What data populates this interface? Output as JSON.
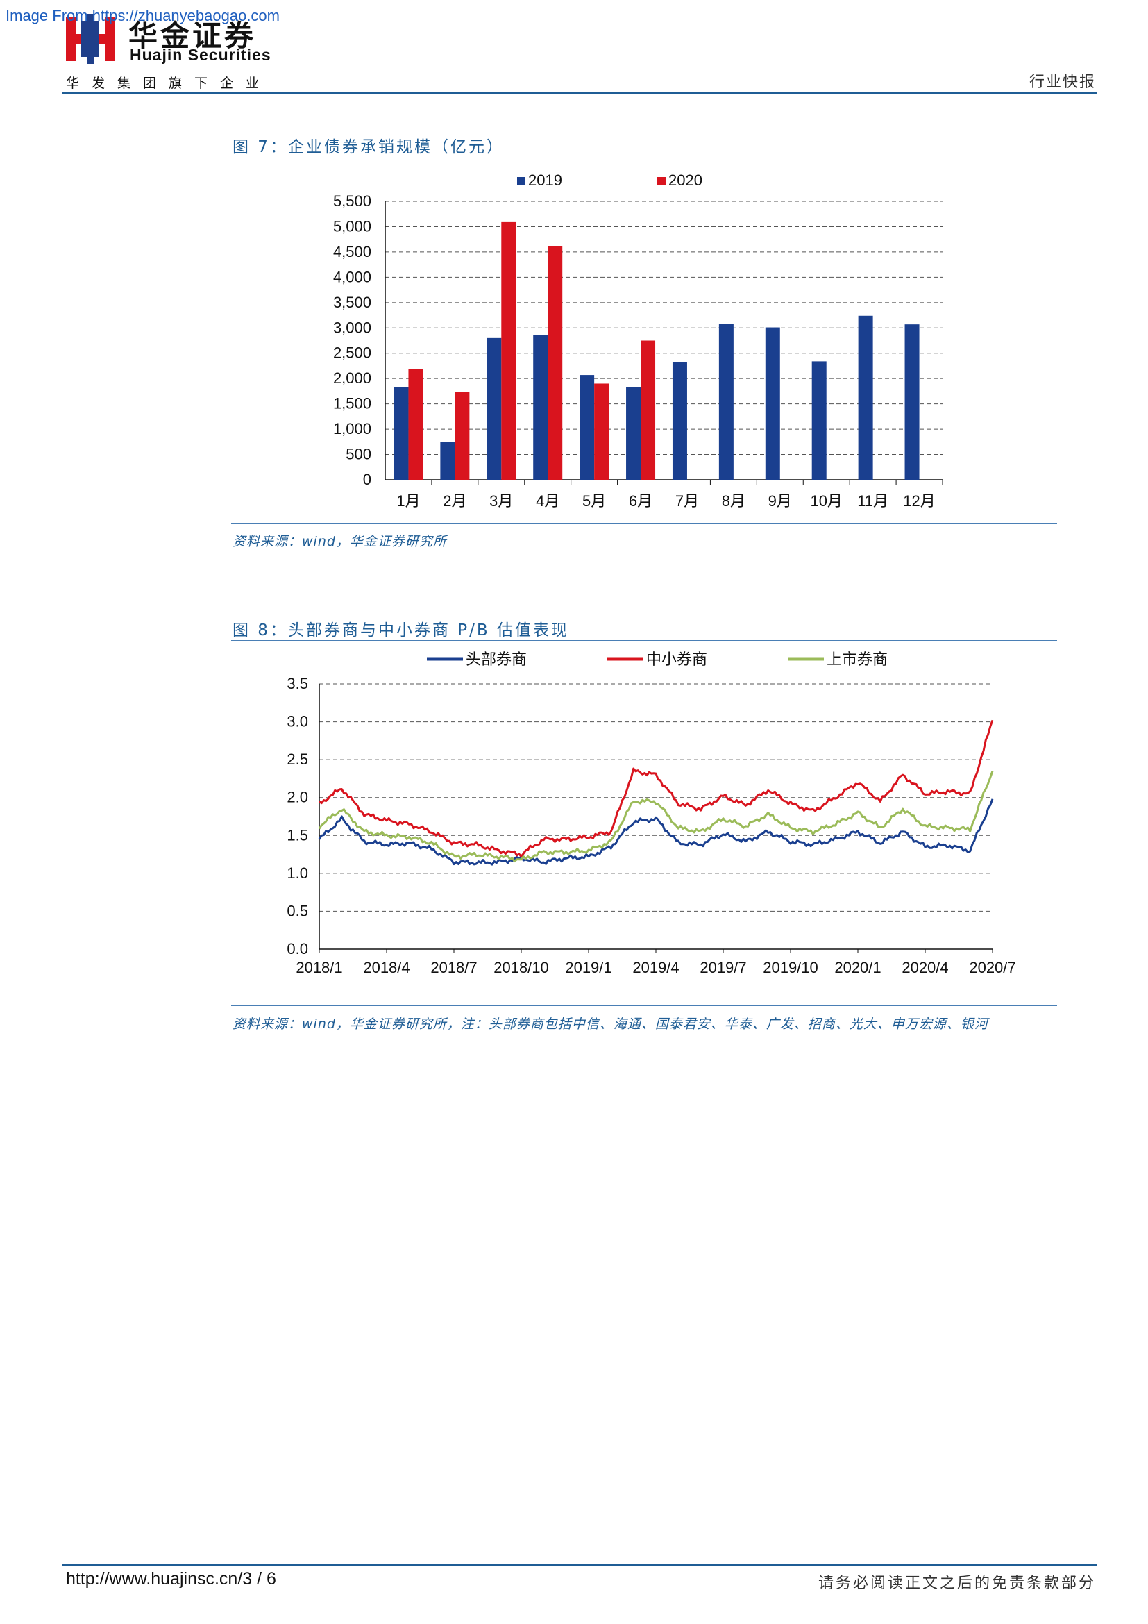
{
  "watermark": "Image From https://zhuanyebaogao.com",
  "header": {
    "brand_cn": "华金证券",
    "brand_en": "Huajin Securities",
    "tagline": "华发集团旗下企业",
    "report_type": "行业快报"
  },
  "figures": [
    {
      "title": "图 7：企业债券承销规模（亿元）",
      "source": "资料来源：wind，华金证券研究所"
    },
    {
      "title": "图 8：头部券商与中小券商 P/B 估值表现",
      "source": "资料来源：wind，华金证券研究所，注：头部券商包括中信、海通、国泰君安、华泰、广发、招商、光大、申万宏源、银河"
    }
  ],
  "chart_data": [
    {
      "type": "bar",
      "categories": [
        "1月",
        "2月",
        "3月",
        "4月",
        "5月",
        "6月",
        "7月",
        "8月",
        "9月",
        "10月",
        "11月",
        "12月"
      ],
      "series": [
        {
          "name": "2019",
          "color": "#1a3f8f",
          "values": [
            1830,
            750,
            2800,
            2860,
            2070,
            1830,
            2320,
            3080,
            3010,
            2340,
            3240,
            3070
          ]
        },
        {
          "name": "2020",
          "color": "#d9141e",
          "values": [
            2190,
            1740,
            5090,
            4610,
            1900,
            2750,
            null,
            null,
            null,
            null,
            null,
            null
          ]
        }
      ],
      "ylim": [
        0,
        5500
      ],
      "yticks": [
        "0",
        "500",
        "1,000",
        "1,500",
        "2,000",
        "2,500",
        "3,000",
        "3,500",
        "4,000",
        "4,500",
        "5,000",
        "5,500"
      ],
      "grid": true,
      "legend": "top"
    },
    {
      "type": "line",
      "x_ticks": [
        "2018/1",
        "2018/4",
        "2018/7",
        "2018/10",
        "2019/1",
        "2019/4",
        "2019/7",
        "2019/10",
        "2020/1",
        "2020/4",
        "2020/7"
      ],
      "ylim": [
        0,
        3.5
      ],
      "yticks": [
        "0.0",
        "0.5",
        "1.0",
        "1.5",
        "2.0",
        "2.5",
        "3.0",
        "3.5"
      ],
      "grid": true,
      "legend": "top",
      "series": [
        {
          "name": "头部券商",
          "color": "#1a3f8f",
          "points": [
            [
              "2018/1",
              1.45
            ],
            [
              "2018/2",
              1.72
            ],
            [
              "2018/3",
              1.42
            ],
            [
              "2018/4",
              1.38
            ],
            [
              "2018/5",
              1.4
            ],
            [
              "2018/6",
              1.32
            ],
            [
              "2018/7",
              1.15
            ],
            [
              "2018/8",
              1.14
            ],
            [
              "2018/9",
              1.15
            ],
            [
              "2018/10",
              1.2
            ],
            [
              "2018/11",
              1.15
            ],
            [
              "2018/12",
              1.2
            ],
            [
              "2019/1",
              1.22
            ],
            [
              "2019/2",
              1.35
            ],
            [
              "2019/3",
              1.68
            ],
            [
              "2019/4",
              1.72
            ],
            [
              "2019/5",
              1.4
            ],
            [
              "2019/6",
              1.38
            ],
            [
              "2019/7",
              1.52
            ],
            [
              "2019/8",
              1.42
            ],
            [
              "2019/9",
              1.55
            ],
            [
              "2019/10",
              1.42
            ],
            [
              "2019/11",
              1.38
            ],
            [
              "2019/12",
              1.45
            ],
            [
              "2020/1",
              1.55
            ],
            [
              "2020/2",
              1.4
            ],
            [
              "2020/3",
              1.55
            ],
            [
              "2020/4",
              1.35
            ],
            [
              "2020/5",
              1.37
            ],
            [
              "2020/6",
              1.3
            ],
            [
              "2020/7",
              1.98
            ]
          ]
        },
        {
          "name": "中小券商",
          "color": "#d9141e",
          "points": [
            [
              "2018/1",
              1.92
            ],
            [
              "2018/2",
              2.12
            ],
            [
              "2018/3",
              1.78
            ],
            [
              "2018/4",
              1.7
            ],
            [
              "2018/5",
              1.65
            ],
            [
              "2018/6",
              1.55
            ],
            [
              "2018/7",
              1.4
            ],
            [
              "2018/8",
              1.38
            ],
            [
              "2018/9",
              1.3
            ],
            [
              "2018/10",
              1.25
            ],
            [
              "2018/11",
              1.45
            ],
            [
              "2018/12",
              1.45
            ],
            [
              "2019/1",
              1.48
            ],
            [
              "2019/2",
              1.55
            ],
            [
              "2019/3",
              2.35
            ],
            [
              "2019/4",
              2.3
            ],
            [
              "2019/5",
              1.92
            ],
            [
              "2019/6",
              1.85
            ],
            [
              "2019/7",
              2.02
            ],
            [
              "2019/8",
              1.9
            ],
            [
              "2019/9",
              2.1
            ],
            [
              "2019/10",
              1.92
            ],
            [
              "2019/11",
              1.82
            ],
            [
              "2019/12",
              2.0
            ],
            [
              "2020/1",
              2.2
            ],
            [
              "2020/2",
              1.95
            ],
            [
              "2020/3",
              2.3
            ],
            [
              "2020/4",
              2.05
            ],
            [
              "2020/5",
              2.08
            ],
            [
              "2020/6",
              2.05
            ],
            [
              "2020/7",
              3.02
            ]
          ]
        },
        {
          "name": "上市券商",
          "color": "#9bbb59",
          "points": [
            [
              "2018/1",
              1.62
            ],
            [
              "2018/2",
              1.85
            ],
            [
              "2018/3",
              1.55
            ],
            [
              "2018/4",
              1.5
            ],
            [
              "2018/5",
              1.48
            ],
            [
              "2018/6",
              1.4
            ],
            [
              "2018/7",
              1.22
            ],
            [
              "2018/8",
              1.25
            ],
            [
              "2018/9",
              1.22
            ],
            [
              "2018/10",
              1.18
            ],
            [
              "2018/11",
              1.28
            ],
            [
              "2018/12",
              1.28
            ],
            [
              "2019/1",
              1.3
            ],
            [
              "2019/2",
              1.42
            ],
            [
              "2019/3",
              1.95
            ],
            [
              "2019/4",
              1.95
            ],
            [
              "2019/5",
              1.6
            ],
            [
              "2019/6",
              1.55
            ],
            [
              "2019/7",
              1.72
            ],
            [
              "2019/8",
              1.62
            ],
            [
              "2019/9",
              1.78
            ],
            [
              "2019/10",
              1.6
            ],
            [
              "2019/11",
              1.55
            ],
            [
              "2019/12",
              1.65
            ],
            [
              "2020/1",
              1.8
            ],
            [
              "2020/2",
              1.6
            ],
            [
              "2020/3",
              1.85
            ],
            [
              "2020/4",
              1.62
            ],
            [
              "2020/5",
              1.6
            ],
            [
              "2020/6",
              1.58
            ],
            [
              "2020/7",
              2.35
            ]
          ]
        }
      ]
    }
  ],
  "footer": {
    "url": "http://www.huajinsc.cn/3 / 6",
    "disclaimer": "请务必阅读正文之后的免责条款部分"
  }
}
